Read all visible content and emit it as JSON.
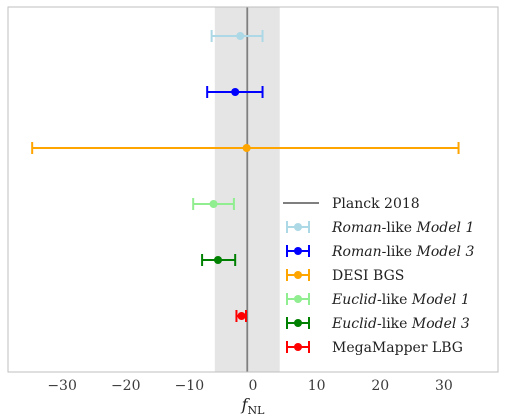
{
  "chart_data": {
    "type": "errorbar",
    "xlabel": "f_NL",
    "xlabel_main": "f",
    "xlabel_sub": "NL",
    "xlim": [
      -38.5,
      38.5
    ],
    "xticks": [
      -30,
      -20,
      -10,
      0,
      10,
      20,
      30
    ],
    "xtick_labels": [
      "−30",
      "−20",
      "−10",
      "0",
      "10",
      "20",
      "30"
    ],
    "grid": false,
    "legend_position": "lower-right",
    "reference": {
      "name": "Planck 2018",
      "center": -0.9,
      "band": [
        -6.0,
        4.2
      ],
      "line_color": "#7f7f7f",
      "band_color": "#e5e5e5"
    },
    "series": [
      {
        "label_italic": "Roman",
        "label_rest": "-like ",
        "label_model": "Model 1",
        "center": -2.0,
        "low": -6.5,
        "high": 1.5,
        "color": "#add8e6"
      },
      {
        "label_italic": "Roman",
        "label_rest": "-like ",
        "label_model": "Model 3",
        "center": -2.8,
        "low": -7.2,
        "high": 1.5,
        "color": "#0000ff"
      },
      {
        "label_plain": "DESI BGS",
        "center": -1.0,
        "low": -34.7,
        "high": 32.3,
        "color": "#ffa500"
      },
      {
        "label_italic": "Euclid",
        "label_rest": "-like ",
        "label_model": "Model 1",
        "center": -6.2,
        "low": -9.4,
        "high": -3.0,
        "color": "#90ee90"
      },
      {
        "label_italic": "Euclid",
        "label_rest": "-like ",
        "label_model": "Model 3",
        "center": -5.5,
        "low": -8.0,
        "high": -2.8,
        "color": "#008000"
      },
      {
        "label_plain": "MegaMapper LBG",
        "center": -1.8,
        "low": -2.6,
        "high": -1.1,
        "color": "#ff0000"
      }
    ]
  }
}
